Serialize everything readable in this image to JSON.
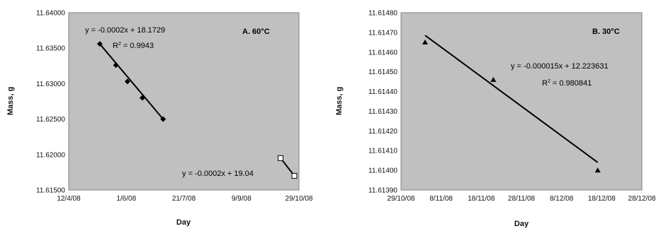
{
  "chart_data": [
    {
      "type": "scatter",
      "title": "A. 60°C",
      "xlabel": "Day",
      "ylabel": "Mass, g",
      "x_tick_labels": [
        "12/4/08",
        "1/6/08",
        "21/7/08",
        "9/9/08",
        "29/10/08"
      ],
      "y_tick_labels": [
        "11.61500",
        "11.62000",
        "11.62500",
        "11.63000",
        "11.63500",
        "11.64000"
      ],
      "ylim": [
        11.615,
        11.64
      ],
      "grid": false,
      "background": "#c0c0c0",
      "series": [
        {
          "marker": "diamond",
          "x": [
            "2008-05-09",
            "2008-05-23",
            "2008-06-02",
            "2008-06-15",
            "2008-07-03"
          ],
          "y": [
            11.6356,
            11.6326,
            11.6303,
            11.628,
            11.625
          ],
          "trendline": {
            "equation": "y = -0.0002x + 18.1729",
            "r2_label": "R",
            "r2_sup": "2",
            "r2_value": " = 0.9943",
            "from": [
              "2008-05-09",
              11.6356
            ],
            "to": [
              "2008-07-03",
              11.625
            ]
          }
        },
        {
          "marker": "square-open",
          "x": [
            "2008-10-13",
            "2008-10-25"
          ],
          "y": [
            11.6195,
            11.617
          ],
          "trendline": {
            "equation": "y = -0.0002x + 19.04",
            "from": [
              "2008-10-13",
              11.6195
            ],
            "to": [
              "2008-10-25",
              11.617
            ]
          }
        }
      ]
    },
    {
      "type": "scatter",
      "title": "B. 30°C",
      "xlabel": "Day",
      "ylabel": "Mass, g",
      "x_tick_labels": [
        "29/10/08",
        "8/11/08",
        "18/11/08",
        "28/11/08",
        "8/12/08",
        "18/12/08",
        "28/12/08"
      ],
      "y_tick_labels": [
        "11.61390",
        "11.61400",
        "11.61410",
        "11.61420",
        "11.61430",
        "11.61440",
        "11.61450",
        "11.61460",
        "11.61470",
        "11.61480"
      ],
      "ylim": [
        11.6139,
        11.6148
      ],
      "grid": false,
      "background": "#c0c0c0",
      "series": [
        {
          "marker": "triangle",
          "x": [
            "2008-11-04",
            "2008-11-21",
            "2008-12-17"
          ],
          "y": [
            11.61465,
            11.61446,
            11.614
          ],
          "trendline": {
            "equation": "y = -0.000015x + 12.223631",
            "r2_label": "R",
            "r2_sup": "2",
            "r2_value": " = 0.980841",
            "from": [
              "2008-11-04",
              11.614685
            ],
            "to": [
              "2008-12-17",
              11.61404
            ]
          }
        }
      ]
    }
  ]
}
